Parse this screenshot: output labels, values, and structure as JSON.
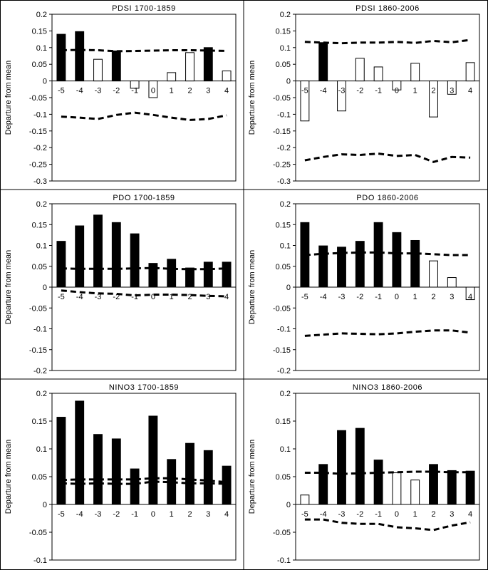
{
  "chart_data": [
    {
      "type": "bar",
      "title": "PDSI 1700-1859",
      "ylabel": "Departure from mean",
      "ylim": [
        -0.3,
        0.2
      ],
      "yticks": [
        "0.2",
        "0.15",
        "0.1",
        "0.05",
        "0",
        "-0.05",
        "-0.1",
        "-0.15",
        "-0.2",
        "-0.25",
        "-0.3"
      ],
      "categories": [
        "-5",
        "-4",
        "-3",
        "-2",
        "-1",
        "0",
        "1",
        "2",
        "3",
        "4"
      ],
      "values": [
        0.14,
        0.148,
        0.065,
        0.09,
        -0.022,
        -0.05,
        0.025,
        0.085,
        0.1,
        0.03
      ],
      "significant": [
        true,
        true,
        false,
        true,
        false,
        false,
        false,
        false,
        true,
        false
      ],
      "upper_bound": [
        0.092,
        0.093,
        0.092,
        0.089,
        0.09,
        0.091,
        0.092,
        0.092,
        0.091,
        0.09
      ],
      "lower_bound": [
        -0.107,
        -0.11,
        -0.114,
        -0.102,
        -0.095,
        -0.102,
        -0.11,
        -0.117,
        -0.114,
        -0.103
      ]
    },
    {
      "type": "bar",
      "title": "PDSI 1860-2006",
      "ylabel": "Departure from mean",
      "ylim": [
        -0.3,
        0.2
      ],
      "yticks": [
        "0.2",
        "0.15",
        "0.1",
        "0.05",
        "0",
        "-0.05",
        "-0.1",
        "-0.15",
        "-0.2",
        "-0.25",
        "-0.3"
      ],
      "categories": [
        "-5",
        "-4",
        "-3",
        "-2",
        "-1",
        "0",
        "1",
        "2",
        "3",
        "4"
      ],
      "values": [
        -0.12,
        0.115,
        -0.09,
        0.068,
        0.042,
        -0.027,
        0.053,
        -0.108,
        -0.04,
        0.055
      ],
      "significant": [
        false,
        true,
        false,
        false,
        false,
        false,
        false,
        false,
        false,
        false
      ],
      "upper_bound": [
        0.117,
        0.115,
        0.113,
        0.115,
        0.115,
        0.117,
        0.114,
        0.12,
        0.116,
        0.123
      ],
      "lower_bound": [
        -0.238,
        -0.228,
        -0.22,
        -0.222,
        -0.218,
        -0.225,
        -0.222,
        -0.243,
        -0.228,
        -0.23
      ]
    },
    {
      "type": "bar",
      "title": "PDO 1700-1859",
      "ylabel": "Departure from mean",
      "ylim": [
        -0.2,
        0.2
      ],
      "yticks": [
        "0.2",
        "0.15",
        "0.1",
        "0.05",
        "0",
        "-0.05",
        "-0.1",
        "-0.15",
        "-0.2"
      ],
      "categories": [
        "-5",
        "-4",
        "-3",
        "-2",
        "-1",
        "0",
        "1",
        "2",
        "3",
        "4"
      ],
      "values": [
        0.11,
        0.147,
        0.173,
        0.155,
        0.128,
        0.057,
        0.067,
        0.046,
        0.06,
        0.06
      ],
      "significant": [
        true,
        true,
        true,
        true,
        true,
        true,
        true,
        true,
        true,
        true
      ],
      "upper_bound": [
        0.045,
        0.044,
        0.044,
        0.044,
        0.045,
        0.046,
        0.044,
        0.043,
        0.043,
        0.045
      ],
      "lower_bound": [
        -0.008,
        -0.012,
        -0.015,
        -0.016,
        -0.02,
        -0.018,
        -0.018,
        -0.019,
        -0.021,
        -0.022
      ]
    },
    {
      "type": "bar",
      "title": "PDO 1860-2006",
      "ylabel": "Departure from mean",
      "ylim": [
        -0.2,
        0.2
      ],
      "yticks": [
        "0.2",
        "0.15",
        "0.1",
        "0.05",
        "0",
        "-0.05",
        "-0.1",
        "-0.15",
        "-0.2"
      ],
      "categories": [
        "-5",
        "-4",
        "-3",
        "-2",
        "-1",
        "0",
        "1",
        "2",
        "3",
        "4"
      ],
      "values": [
        0.155,
        0.099,
        0.096,
        0.11,
        0.155,
        0.131,
        0.112,
        0.063,
        0.023,
        -0.03
      ],
      "significant": [
        true,
        true,
        true,
        true,
        true,
        true,
        true,
        false,
        false,
        false
      ],
      "upper_bound": [
        0.077,
        0.08,
        0.082,
        0.083,
        0.083,
        0.081,
        0.081,
        0.079,
        0.077,
        0.077
      ],
      "lower_bound": [
        -0.117,
        -0.114,
        -0.111,
        -0.112,
        -0.113,
        -0.111,
        -0.107,
        -0.104,
        -0.104,
        -0.109
      ]
    },
    {
      "type": "bar",
      "title": "NINO3 1700-1859",
      "ylabel": "Departure from mean",
      "ylim": [
        -0.1,
        0.2
      ],
      "yticks": [
        "0.2",
        "0.15",
        "0.1",
        "0.05",
        "0",
        "-0.05",
        "-0.1"
      ],
      "categories": [
        "-5",
        "-4",
        "-3",
        "-2",
        "-1",
        "0",
        "1",
        "2",
        "3",
        "4"
      ],
      "values": [
        0.157,
        0.186,
        0.126,
        0.118,
        0.064,
        0.159,
        0.081,
        0.11,
        0.097,
        0.069
      ],
      "significant": [
        true,
        true,
        true,
        true,
        true,
        true,
        true,
        true,
        true,
        true
      ],
      "upper_bound": [
        0.044,
        0.045,
        0.045,
        0.045,
        0.045,
        0.047,
        0.047,
        0.045,
        0.043,
        0.04
      ],
      "lower_bound": [
        0.038,
        0.037,
        0.038,
        0.037,
        0.037,
        0.041,
        0.04,
        0.038,
        0.038,
        0.037
      ]
    },
    {
      "type": "bar",
      "title": "NINO3 1860-2006",
      "ylabel": "Departure from mean",
      "ylim": [
        -0.1,
        0.2
      ],
      "yticks": [
        "0.2",
        "0.15",
        "0.1",
        "0.05",
        "0",
        "-0.05",
        "-0.1"
      ],
      "categories": [
        "-5",
        "-4",
        "-3",
        "-2",
        "-1",
        "0",
        "1",
        "2",
        "3",
        "4"
      ],
      "values": [
        0.017,
        0.072,
        0.133,
        0.137,
        0.08,
        0.057,
        0.044,
        0.072,
        0.061,
        0.06
      ],
      "significant": [
        false,
        true,
        true,
        true,
        true,
        false,
        false,
        true,
        true,
        true
      ],
      "upper_bound": [
        0.057,
        0.057,
        0.055,
        0.056,
        0.057,
        0.058,
        0.059,
        0.059,
        0.058,
        0.058
      ],
      "lower_bound": [
        -0.027,
        -0.027,
        -0.033,
        -0.035,
        -0.035,
        -0.041,
        -0.043,
        -0.046,
        -0.038,
        -0.032
      ]
    }
  ],
  "colors": {
    "significant_bar": "#000000",
    "nonsignificant_bar": "#ffffff",
    "bar_outline": "#000000",
    "bound_line": "#000000",
    "frame": "#000000",
    "background": "#ffffff"
  }
}
